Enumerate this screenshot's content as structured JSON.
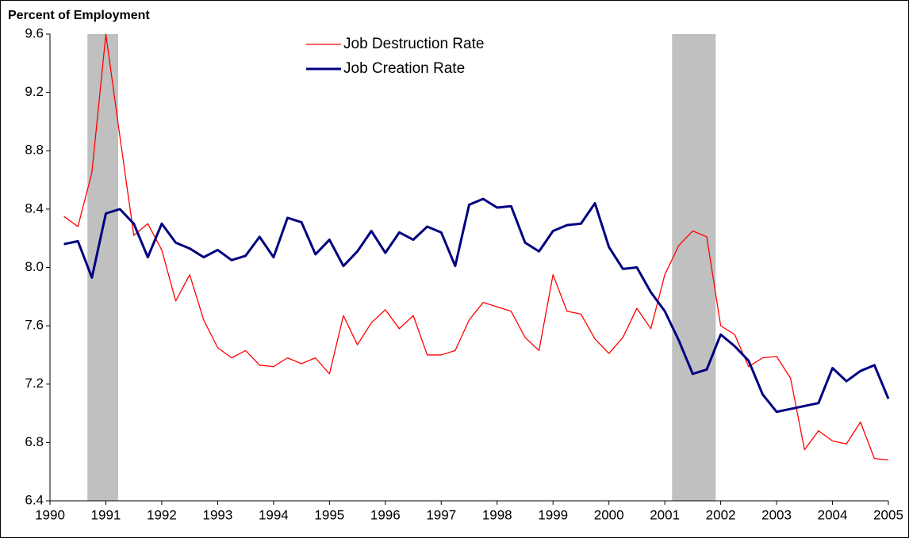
{
  "chart_data": {
    "type": "line",
    "y_axis_label": "Percent of Employment",
    "x": [
      1990.25,
      1990.5,
      1990.75,
      1991,
      1991.25,
      1991.5,
      1991.75,
      1992,
      1992.25,
      1992.5,
      1992.75,
      1993,
      1993.25,
      1993.5,
      1993.75,
      1994,
      1994.25,
      1994.5,
      1994.75,
      1995,
      1995.25,
      1995.5,
      1995.75,
      1996,
      1996.25,
      1996.5,
      1996.75,
      1997,
      1997.25,
      1997.5,
      1997.75,
      1998,
      1998.25,
      1998.5,
      1998.75,
      1999,
      1999.25,
      1999.5,
      1999.75,
      2000,
      2000.25,
      2000.5,
      2000.75,
      2001,
      2001.25,
      2001.5,
      2001.75,
      2002,
      2002.25,
      2002.5,
      2002.75,
      2003,
      2003.25,
      2003.5,
      2003.75,
      2004,
      2004.25,
      2004.5,
      2004.75,
      2005
    ],
    "series": [
      {
        "name": "Job Destruction Rate",
        "color": "#ff0000",
        "width": 1.3,
        "values": [
          8.35,
          8.28,
          8.65,
          9.6,
          8.9,
          8.22,
          8.3,
          8.12,
          7.77,
          7.95,
          7.64,
          7.45,
          7.38,
          7.43,
          7.33,
          7.32,
          7.38,
          7.34,
          7.38,
          7.27,
          7.67,
          7.47,
          7.62,
          7.71,
          7.58,
          7.67,
          7.4,
          7.4,
          7.43,
          7.64,
          7.76,
          7.73,
          7.7,
          7.52,
          7.43,
          7.95,
          7.7,
          7.68,
          7.51,
          7.41,
          7.52,
          7.72,
          7.58,
          7.95,
          8.15,
          8.25,
          8.21,
          7.6,
          7.54,
          7.32,
          7.38,
          7.39,
          7.24,
          6.75,
          6.88,
          6.81,
          6.79,
          6.94,
          6.69,
          6.68
        ]
      },
      {
        "name": "Job Creation Rate",
        "color": "#000080",
        "width": 3,
        "values": [
          8.16,
          8.18,
          7.93,
          8.37,
          8.4,
          8.3,
          8.07,
          8.3,
          8.17,
          8.13,
          8.07,
          8.12,
          8.05,
          8.08,
          8.21,
          8.07,
          8.34,
          8.31,
          8.09,
          8.19,
          8.01,
          8.11,
          8.25,
          8.1,
          8.24,
          8.19,
          8.28,
          8.24,
          8.01,
          8.43,
          8.47,
          8.41,
          8.42,
          8.17,
          8.11,
          8.25,
          8.29,
          8.3,
          8.44,
          8.14,
          7.99,
          8.0,
          7.83,
          7.7,
          7.5,
          7.27,
          7.3,
          7.54,
          7.46,
          7.36,
          7.13,
          7.01,
          7.03,
          7.05,
          7.07,
          7.31,
          7.22,
          7.29,
          7.33,
          7.1
        ]
      }
    ],
    "shaded_periods": [
      [
        1990.67,
        1991.22
      ],
      [
        2001.13,
        2001.91
      ]
    ],
    "shade_color": "#c0c0c0",
    "xlim": [
      1990,
      2005
    ],
    "xticks": [
      1990,
      1991,
      1992,
      1993,
      1994,
      1995,
      1996,
      1997,
      1998,
      1999,
      2000,
      2001,
      2002,
      2003,
      2004,
      2005
    ],
    "ylim": [
      6.4,
      9.6
    ],
    "yticks": [
      6.4,
      6.8,
      7.2,
      7.6,
      {
        "value": 8,
        "label": "8.0"
      },
      8.4,
      8.8,
      9.2,
      9.6
    ],
    "grid": false,
    "legend": "top-center"
  }
}
